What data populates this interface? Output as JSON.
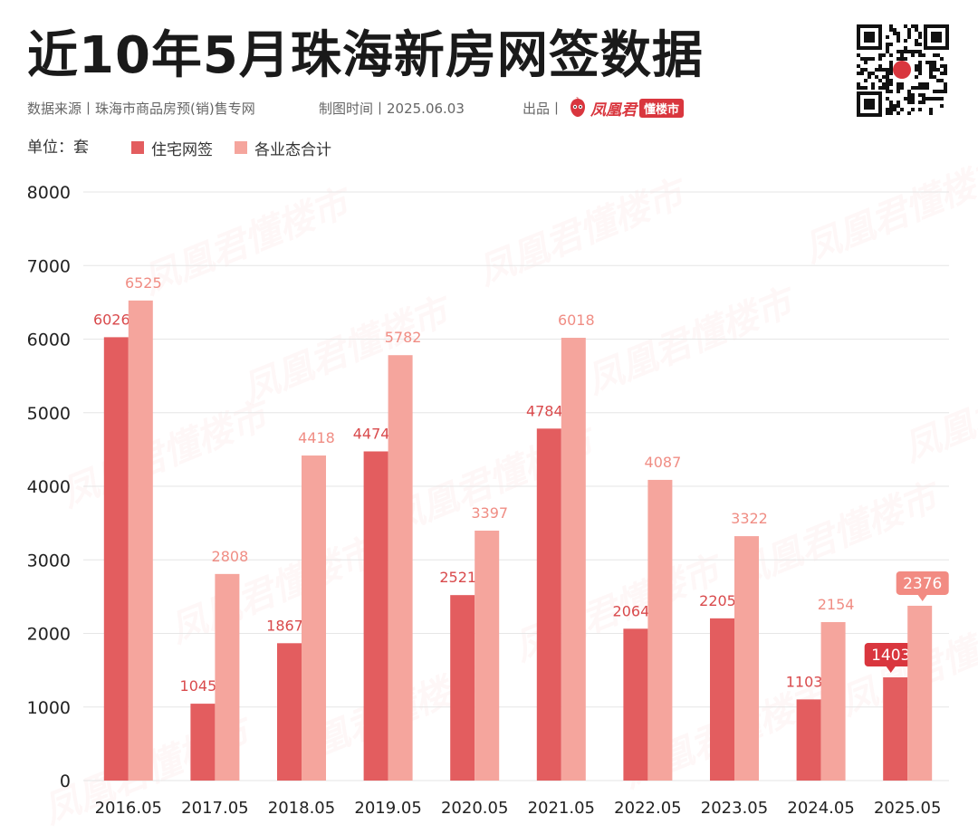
{
  "header": {
    "title": "近10年5月珠海新房网签数据",
    "source": "数据来源丨珠海市商品房预(销)售专网",
    "date": "制图时间丨2025.06.03",
    "produced_by": "出品丨",
    "brand_name": "凤凰君",
    "brand_tag": "懂楼市",
    "watermark_text": "凤凰君懂楼市"
  },
  "unit_label": "单位：套",
  "colors": {
    "series_residential": "#e35d5f",
    "series_total": "#f5a59d",
    "label_residential": "#d94a4c",
    "label_total": "#f08d84",
    "grid": "#e6e6e6",
    "callout_residential": "#d9363e",
    "callout_total": "#f28b82"
  },
  "chart_data": {
    "type": "bar",
    "categories": [
      "2016.05",
      "2017.05",
      "2018.05",
      "2019.05",
      "2020.05",
      "2021.05",
      "2022.05",
      "2023.05",
      "2024.05",
      "2025.05"
    ],
    "series": [
      {
        "name": "住宅网签",
        "values": [
          6026,
          1045,
          1867,
          4474,
          2521,
          4784,
          2064,
          2205,
          1103,
          1403
        ]
      },
      {
        "name": "各业态合计",
        "values": [
          6525,
          2808,
          4418,
          5782,
          3397,
          6018,
          4087,
          3322,
          2154,
          2376
        ]
      }
    ],
    "ylim": [
      0,
      8000
    ],
    "yticks": [
      0,
      1000,
      2000,
      3000,
      4000,
      5000,
      6000,
      7000,
      8000
    ],
    "grid": true,
    "legend_position": "top-left",
    "highlighted_category": "2025.05"
  }
}
